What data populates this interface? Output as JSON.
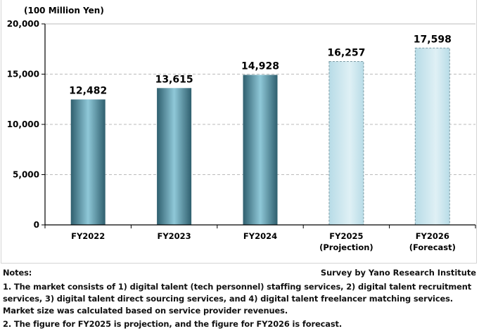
{
  "chart_data": {
    "type": "bar",
    "unit_label": "(100 Million Yen)",
    "categories": [
      [
        "FY2022"
      ],
      [
        "FY2023"
      ],
      [
        "FY2024"
      ],
      [
        "FY2025",
        "(Projection)"
      ],
      [
        "FY2026",
        "(Forecast)"
      ]
    ],
    "values": [
      12482,
      13615,
      14928,
      16257,
      17598
    ],
    "data_labels": [
      "12,482",
      "13,615",
      "14,928",
      "16,257",
      "17,598"
    ],
    "bar_style": [
      "actual",
      "actual",
      "actual",
      "estimate",
      "estimate"
    ],
    "ylim": [
      0,
      20000
    ],
    "yticks": [
      0,
      5000,
      10000,
      15000,
      20000
    ],
    "ytick_labels": [
      "0",
      "5,000",
      "10,000",
      "15,000",
      "20,000"
    ],
    "grid": "dashed horizontal",
    "colors": {
      "actual_edge": "#2f5f6e",
      "actual_center": "#8fc8d8",
      "estimate_fill": "#cfe8f0",
      "estimate_border": "#7a9aa4"
    }
  },
  "notes": {
    "heading": "Notes:",
    "source": "Survey by Yano Research Institute",
    "lines": [
      "1. The market consists of 1) digital talent (tech personnel) staffing services, 2) digital talent recruitment",
      "services, 3) digital talent direct sourcing services, and 4) digital talent freelancer matching services.",
      "Market size was calculated based on service provider revenues.",
      "2. The figure for FY2025 is projection, and the figure for FY2026 is forecast."
    ]
  }
}
